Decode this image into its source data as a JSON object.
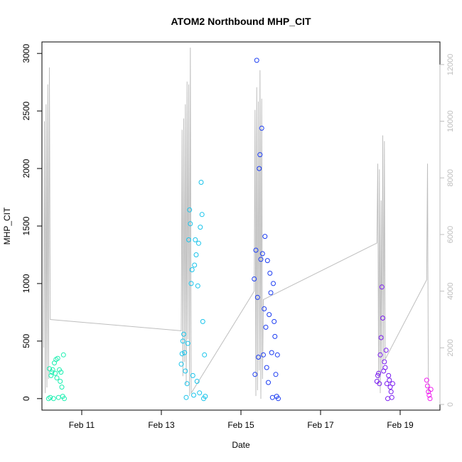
{
  "chart_data": {
    "type": "scatter",
    "title": "ATOM2 Northbound MHP_CIT",
    "xlabel": "Date",
    "ylabel": "MHP_CIT",
    "xlim": [
      "2012-02-10T00:00:00",
      "2012-02-20T00:00:00"
    ],
    "ylim": [
      -100,
      3100
    ],
    "y2lim": [
      -200,
      12800
    ],
    "x_ticks": [
      {
        "date": "2012-02-11T00:00:00",
        "label": "Feb 11"
      },
      {
        "date": "2012-02-13T00:00:00",
        "label": "Feb 13"
      },
      {
        "date": "2012-02-15T00:00:00",
        "label": "Feb 15"
      },
      {
        "date": "2012-02-17T00:00:00",
        "label": "Feb 17"
      },
      {
        "date": "2012-02-19T00:00:00",
        "label": "Feb 19"
      }
    ],
    "y_ticks": [
      0,
      500,
      1000,
      1500,
      2000,
      2500,
      3000
    ],
    "y2_ticks": [
      0,
      2000,
      4000,
      6000,
      8000,
      10000,
      12000
    ],
    "grid": false,
    "legend": "none",
    "colors": {
      "axes": "#000000",
      "secondary_axis": "#bebebe",
      "secondary_line": "#bebebe",
      "group1": "#1aefb0",
      "group2": "#19c4eb",
      "group3": "#1c3df2",
      "group4": "#7a1cf0",
      "group5": "#ef1bef"
    },
    "series": [
      {
        "color": "#1aefb0",
        "points": [
          [
            "2012-02-10T04:00:00",
            0
          ],
          [
            "2012-02-10T04:30:00",
            260
          ],
          [
            "2012-02-10T05:00:00",
            10
          ],
          [
            "2012-02-10T05:30:00",
            200
          ],
          [
            "2012-02-10T06:00:00",
            230
          ],
          [
            "2012-02-10T06:30:00",
            250
          ],
          [
            "2012-02-10T07:00:00",
            0
          ],
          [
            "2012-02-10T07:30:00",
            310
          ],
          [
            "2012-02-10T08:00:00",
            220
          ],
          [
            "2012-02-10T08:30:00",
            340
          ],
          [
            "2012-02-10T09:00:00",
            180
          ],
          [
            "2012-02-10T09:30:00",
            350
          ],
          [
            "2012-02-10T10:00:00",
            10
          ],
          [
            "2012-02-10T10:30:00",
            250
          ],
          [
            "2012-02-10T11:00:00",
            150
          ],
          [
            "2012-02-10T11:30:00",
            230
          ],
          [
            "2012-02-10T12:00:00",
            100
          ],
          [
            "2012-02-10T12:30:00",
            20
          ],
          [
            "2012-02-10T13:00:00",
            380
          ],
          [
            "2012-02-10T13:30:00",
            0
          ]
        ]
      },
      {
        "color": "#19c4eb",
        "points": [
          [
            "2012-02-13T12:00:00",
            300
          ],
          [
            "2012-02-13T12:30:00",
            390
          ],
          [
            "2012-02-13T13:00:00",
            500
          ],
          [
            "2012-02-13T13:30:00",
            560
          ],
          [
            "2012-02-13T14:00:00",
            400
          ],
          [
            "2012-02-13T14:30:00",
            240
          ],
          [
            "2012-02-13T15:00:00",
            10
          ],
          [
            "2012-02-13T15:30:00",
            130
          ],
          [
            "2012-02-13T16:00:00",
            480
          ],
          [
            "2012-02-13T16:30:00",
            1380
          ],
          [
            "2012-02-13T17:00:00",
            1640
          ],
          [
            "2012-02-13T17:30:00",
            1520
          ],
          [
            "2012-02-13T18:00:00",
            1000
          ],
          [
            "2012-02-13T18:30:00",
            1120
          ],
          [
            "2012-02-13T19:00:00",
            200
          ],
          [
            "2012-02-13T19:30:00",
            30
          ],
          [
            "2012-02-13T20:00:00",
            1160
          ],
          [
            "2012-02-13T20:30:00",
            1380
          ],
          [
            "2012-02-13T21:00:00",
            1250
          ],
          [
            "2012-02-13T21:30:00",
            150
          ],
          [
            "2012-02-13T22:00:00",
            980
          ],
          [
            "2012-02-13T22:30:00",
            1350
          ],
          [
            "2012-02-13T23:00:00",
            50
          ],
          [
            "2012-02-13T23:30:00",
            1490
          ],
          [
            "2012-02-14T00:00:00",
            1880
          ],
          [
            "2012-02-14T00:30:00",
            1600
          ],
          [
            "2012-02-14T01:00:00",
            670
          ],
          [
            "2012-02-14T01:30:00",
            0
          ],
          [
            "2012-02-14T02:00:00",
            380
          ],
          [
            "2012-02-14T02:30:00",
            20
          ]
        ]
      },
      {
        "color": "#1c3df2",
        "points": [
          [
            "2012-02-15T08:00:00",
            1040
          ],
          [
            "2012-02-15T08:30:00",
            210
          ],
          [
            "2012-02-15T09:00:00",
            1290
          ],
          [
            "2012-02-15T09:30:00",
            2940
          ],
          [
            "2012-02-15T10:00:00",
            880
          ],
          [
            "2012-02-15T10:30:00",
            360
          ],
          [
            "2012-02-15T11:00:00",
            2000
          ],
          [
            "2012-02-15T11:30:00",
            2120
          ],
          [
            "2012-02-15T12:00:00",
            1210
          ],
          [
            "2012-02-15T12:30:00",
            2350
          ],
          [
            "2012-02-15T13:00:00",
            1260
          ],
          [
            "2012-02-15T13:30:00",
            380
          ],
          [
            "2012-02-15T14:00:00",
            780
          ],
          [
            "2012-02-15T14:30:00",
            1410
          ],
          [
            "2012-02-15T15:00:00",
            620
          ],
          [
            "2012-02-15T15:30:00",
            270
          ],
          [
            "2012-02-15T16:00:00",
            1200
          ],
          [
            "2012-02-15T16:30:00",
            140
          ],
          [
            "2012-02-15T17:00:00",
            730
          ],
          [
            "2012-02-15T17:30:00",
            1090
          ],
          [
            "2012-02-15T18:00:00",
            920
          ],
          [
            "2012-02-15T18:30:00",
            400
          ],
          [
            "2012-02-15T19:00:00",
            10
          ],
          [
            "2012-02-15T19:30:00",
            1000
          ],
          [
            "2012-02-15T20:00:00",
            670
          ],
          [
            "2012-02-15T20:30:00",
            540
          ],
          [
            "2012-02-15T21:00:00",
            210
          ],
          [
            "2012-02-15T21:30:00",
            20
          ],
          [
            "2012-02-15T22:00:00",
            380
          ],
          [
            "2012-02-15T22:30:00",
            0
          ]
        ]
      },
      {
        "color": "#7a1cf0",
        "points": [
          [
            "2012-02-18T10:00:00",
            150
          ],
          [
            "2012-02-18T10:30:00",
            200
          ],
          [
            "2012-02-18T11:00:00",
            220
          ],
          [
            "2012-02-18T11:30:00",
            130
          ],
          [
            "2012-02-18T12:00:00",
            380
          ],
          [
            "2012-02-18T12:30:00",
            530
          ],
          [
            "2012-02-18T13:00:00",
            970
          ],
          [
            "2012-02-18T13:30:00",
            700
          ],
          [
            "2012-02-18T14:00:00",
            240
          ],
          [
            "2012-02-18T14:30:00",
            320
          ],
          [
            "2012-02-18T15:00:00",
            270
          ],
          [
            "2012-02-18T15:30:00",
            420
          ],
          [
            "2012-02-18T16:00:00",
            130
          ],
          [
            "2012-02-18T16:30:00",
            0
          ],
          [
            "2012-02-18T17:00:00",
            200
          ],
          [
            "2012-02-18T17:30:00",
            160
          ],
          [
            "2012-02-18T18:00:00",
            100
          ],
          [
            "2012-02-18T18:30:00",
            60
          ],
          [
            "2012-02-18T19:00:00",
            10
          ],
          [
            "2012-02-18T19:30:00",
            130
          ]
        ]
      },
      {
        "color": "#ef1bef",
        "points": [
          [
            "2012-02-19T16:00:00",
            160
          ],
          [
            "2012-02-19T16:30:00",
            110
          ],
          [
            "2012-02-19T17:00:00",
            60
          ],
          [
            "2012-02-19T17:30:00",
            30
          ],
          [
            "2012-02-19T18:00:00",
            0
          ],
          [
            "2012-02-19T18:30:00",
            80
          ]
        ]
      }
    ],
    "secondary_line": {
      "color": "#bebebe",
      "points": [
        [
          "2012-02-10T01:00:00",
          2000
        ],
        [
          "2012-02-10T01:30:00",
          10000
        ],
        [
          "2012-02-10T02:00:00",
          400
        ],
        [
          "2012-02-10T02:30:00",
          10600
        ],
        [
          "2012-02-10T03:00:00",
          600
        ],
        [
          "2012-02-10T03:30:00",
          11300
        ],
        [
          "2012-02-10T04:00:00",
          900
        ],
        [
          "2012-02-10T04:30:00",
          11900
        ],
        [
          "2012-02-10T05:00:00",
          3000
        ],
        [
          "2012-02-13T12:00:00",
          2600
        ],
        [
          "2012-02-13T12:30:00",
          9700
        ],
        [
          "2012-02-13T13:00:00",
          1000
        ],
        [
          "2012-02-13T13:30:00",
          10100
        ],
        [
          "2012-02-13T14:00:00",
          1500
        ],
        [
          "2012-02-13T14:30:00",
          10600
        ],
        [
          "2012-02-13T15:00:00",
          700
        ],
        [
          "2012-02-13T15:30:00",
          11400
        ],
        [
          "2012-02-13T16:00:00",
          2300
        ],
        [
          "2012-02-13T16:30:00",
          11300
        ],
        [
          "2012-02-13T17:00:00",
          300
        ],
        [
          "2012-02-13T17:30:00",
          12600
        ],
        [
          "2012-02-13T18:00:00",
          400
        ],
        [
          "2012-02-15T08:00:00",
          4000
        ],
        [
          "2012-02-15T08:30:00",
          10400
        ],
        [
          "2012-02-15T09:00:00",
          300
        ],
        [
          "2012-02-15T09:30:00",
          11200
        ],
        [
          "2012-02-15T10:00:00",
          500
        ],
        [
          "2012-02-15T10:30:00",
          10700
        ],
        [
          "2012-02-15T11:00:00",
          1200
        ],
        [
          "2012-02-15T11:30:00",
          11800
        ],
        [
          "2012-02-15T12:00:00",
          200
        ],
        [
          "2012-02-15T12:30:00",
          10800
        ],
        [
          "2012-02-15T13:00:00",
          900
        ],
        [
          "2012-02-15T13:30:00",
          3700
        ],
        [
          "2012-02-18T10:00:00",
          5700
        ],
        [
          "2012-02-18T10:30:00",
          8500
        ],
        [
          "2012-02-18T11:00:00",
          700
        ],
        [
          "2012-02-18T11:30:00",
          8300
        ],
        [
          "2012-02-18T12:00:00",
          400
        ],
        [
          "2012-02-18T12:30:00",
          7200
        ],
        [
          "2012-02-18T13:00:00",
          1200
        ],
        [
          "2012-02-18T13:30:00",
          9500
        ],
        [
          "2012-02-18T14:00:00",
          1500
        ],
        [
          "2012-02-18T14:30:00",
          9300
        ],
        [
          "2012-02-18T15:00:00",
          1600
        ],
        [
          "2012-02-19T16:00:00",
          4400
        ],
        [
          "2012-02-19T16:30:00",
          8500
        ],
        [
          "2012-02-19T17:00:00",
          400
        ]
      ]
    }
  }
}
